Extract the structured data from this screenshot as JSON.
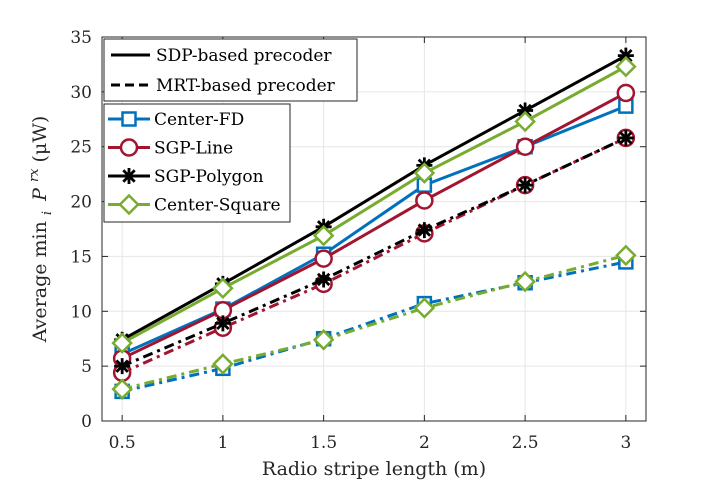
{
  "chart_data": {
    "type": "line",
    "title": "",
    "xlabel": "Radio stripe length (m)",
    "ylabel_parts": {
      "prefix": "Average min",
      "sub": "i",
      "var": "P",
      "sup": "rx",
      "suffix": " (μW)"
    },
    "x": [
      0.5,
      1,
      1.5,
      2,
      2.5,
      3
    ],
    "xlim": [
      0.4,
      3.1
    ],
    "ylim": [
      0,
      35
    ],
    "xticks": [
      "0.5",
      "1",
      "1.5",
      "2",
      "2.5",
      "3"
    ],
    "yticks": [
      "0",
      "5",
      "10",
      "15",
      "20",
      "25",
      "30",
      "35"
    ],
    "grid": true,
    "legend_position": "top-left",
    "line_styles_legend": [
      {
        "label": "SDP-based precoder",
        "style": "solid"
      },
      {
        "label": "MRT-based precoder",
        "style": "dashed"
      }
    ],
    "marker_legend": [
      {
        "label": "Center-FD",
        "color": "#0072BD",
        "marker": "square"
      },
      {
        "label": "SGP-Line",
        "color": "#A2142F",
        "marker": "circle"
      },
      {
        "label": "SGP-Polygon",
        "color": "#000000",
        "marker": "asterisk"
      },
      {
        "label": "Center-Square",
        "color": "#77AC30",
        "marker": "diamond"
      }
    ],
    "series": [
      {
        "name": "Center-FD (SDP)",
        "precoder": "SDP",
        "color": "#0072BD",
        "marker": "square",
        "style": "solid",
        "values": [
          6.1,
          10.2,
          15.2,
          21.5,
          25.0,
          28.7
        ]
      },
      {
        "name": "SGP-Line (SDP)",
        "precoder": "SDP",
        "color": "#A2142F",
        "marker": "circle",
        "style": "solid",
        "values": [
          5.7,
          10.1,
          14.8,
          20.1,
          25.0,
          29.9
        ]
      },
      {
        "name": "SGP-Polygon (SDP)",
        "precoder": "SDP",
        "color": "#000000",
        "marker": "asterisk",
        "style": "solid",
        "values": [
          7.4,
          12.5,
          17.7,
          23.3,
          28.3,
          33.3
        ]
      },
      {
        "name": "Center-Square (SDP)",
        "precoder": "SDP",
        "color": "#77AC30",
        "marker": "diamond",
        "style": "solid",
        "values": [
          7.1,
          12.1,
          16.9,
          22.6,
          27.3,
          32.3
        ]
      },
      {
        "name": "Center-FD (MRT)",
        "precoder": "MRT",
        "color": "#0072BD",
        "marker": "square",
        "style": "dashed",
        "values": [
          2.7,
          4.8,
          7.5,
          10.7,
          12.6,
          14.5
        ]
      },
      {
        "name": "SGP-Line (MRT)",
        "precoder": "MRT",
        "color": "#A2142F",
        "marker": "circle",
        "style": "dashed",
        "values": [
          4.4,
          8.5,
          12.5,
          17.1,
          21.5,
          25.8
        ]
      },
      {
        "name": "SGP-Polygon (MRT)",
        "precoder": "MRT",
        "color": "#000000",
        "marker": "asterisk",
        "style": "dashed",
        "values": [
          5.0,
          8.9,
          12.9,
          17.4,
          21.5,
          25.8
        ]
      },
      {
        "name": "Center-Square (MRT)",
        "precoder": "MRT",
        "color": "#77AC30",
        "marker": "diamond",
        "style": "dashed",
        "values": [
          2.9,
          5.2,
          7.4,
          10.3,
          12.7,
          15.1
        ]
      }
    ]
  }
}
